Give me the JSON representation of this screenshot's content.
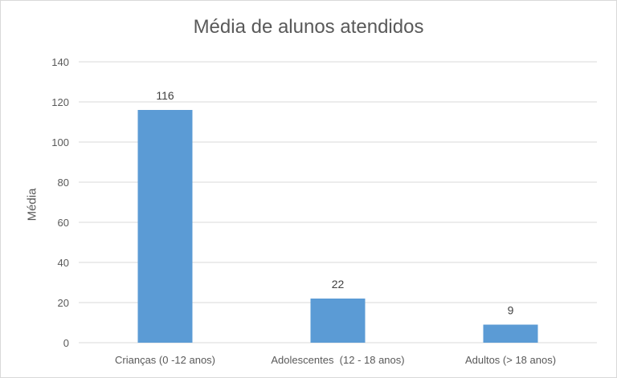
{
  "chart_data": {
    "type": "bar",
    "title": "Média de alunos atendidos",
    "xlabel": "",
    "ylabel": "Média",
    "categories": [
      "Crianças (0 -12 anos)",
      "Adolescentes  (12 - 18 anos)",
      "Adultos (> 18 anos)"
    ],
    "values": [
      116,
      22,
      9
    ],
    "data_labels": [
      "116",
      "22",
      "9"
    ],
    "ylim": [
      0,
      140
    ],
    "y_ticks": [
      0,
      20,
      40,
      60,
      80,
      100,
      120,
      140
    ],
    "grid": true,
    "legend": "none",
    "bar_color": "#5b9bd5",
    "grid_color": "#d9d9d9"
  }
}
